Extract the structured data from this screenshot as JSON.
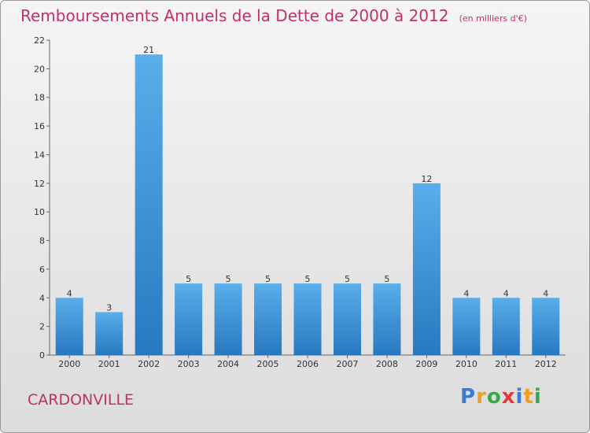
{
  "title": "Remboursements Annuels de la Dette de 2000 à 2012",
  "subtitle": "(en milliers d'€)",
  "commune": "CARDONVILLE",
  "logo": {
    "letters": [
      "P",
      "r",
      "o",
      "x",
      "i",
      "t",
      "i"
    ],
    "colors": [
      "#3a7bd5",
      "#f0a020",
      "#3aa84a",
      "#e03a3a",
      "#3a7bd5",
      "#f0a020",
      "#3aa84a"
    ]
  },
  "chart_data": {
    "type": "bar",
    "categories": [
      "2000",
      "2001",
      "2002",
      "2003",
      "2004",
      "2005",
      "2006",
      "2007",
      "2008",
      "2009",
      "2010",
      "2011",
      "2012"
    ],
    "values": [
      4,
      3,
      21,
      5,
      5,
      5,
      5,
      5,
      5,
      12,
      4,
      4,
      4
    ],
    "ylim": [
      0,
      22
    ],
    "yticks": [
      0,
      2,
      4,
      6,
      8,
      10,
      12,
      14,
      16,
      18,
      20,
      22
    ],
    "bar_color": "#3d8fd6",
    "grid": false
  }
}
